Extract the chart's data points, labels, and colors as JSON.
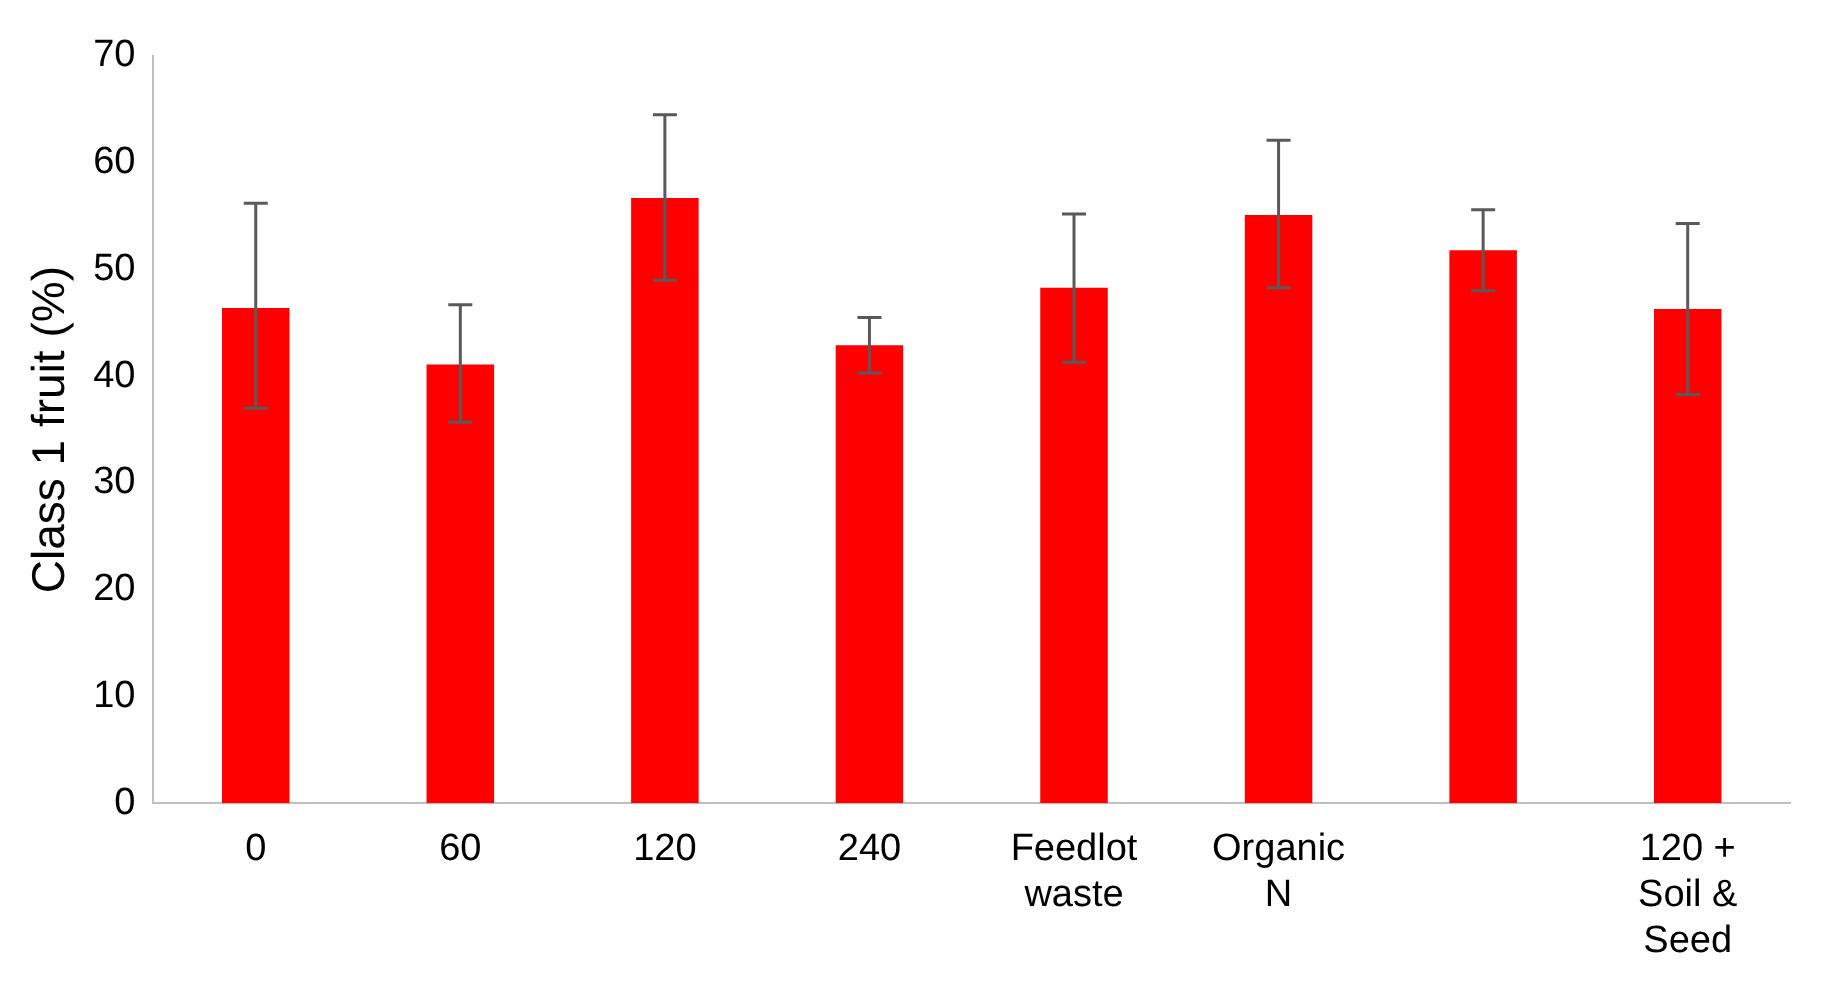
{
  "chart_data": {
    "type": "bar",
    "ylabel": "Class 1 fruit (%)",
    "categories": [
      "0",
      "60",
      "120",
      "240",
      "Feedlot waste",
      "Organic N",
      null,
      "120 + Soil & Seed"
    ],
    "values": [
      46.4,
      41.1,
      56.7,
      42.9,
      48.3,
      55.1,
      51.8,
      46.3
    ],
    "errors": [
      [
        37,
        56.2
      ],
      [
        35.7,
        46.7
      ],
      [
        49,
        64.5
      ],
      [
        40.3,
        45.5
      ],
      [
        41.3,
        55.2
      ],
      [
        48.3,
        62.1
      ],
      [
        48,
        55.6
      ],
      [
        38.3,
        54.3
      ]
    ],
    "color": "#ff0000",
    "ylim": [
      0,
      70
    ],
    "yticks": [
      0,
      10,
      20,
      30,
      40,
      50,
      60,
      70
    ],
    "grid": false,
    "legend": false
  }
}
